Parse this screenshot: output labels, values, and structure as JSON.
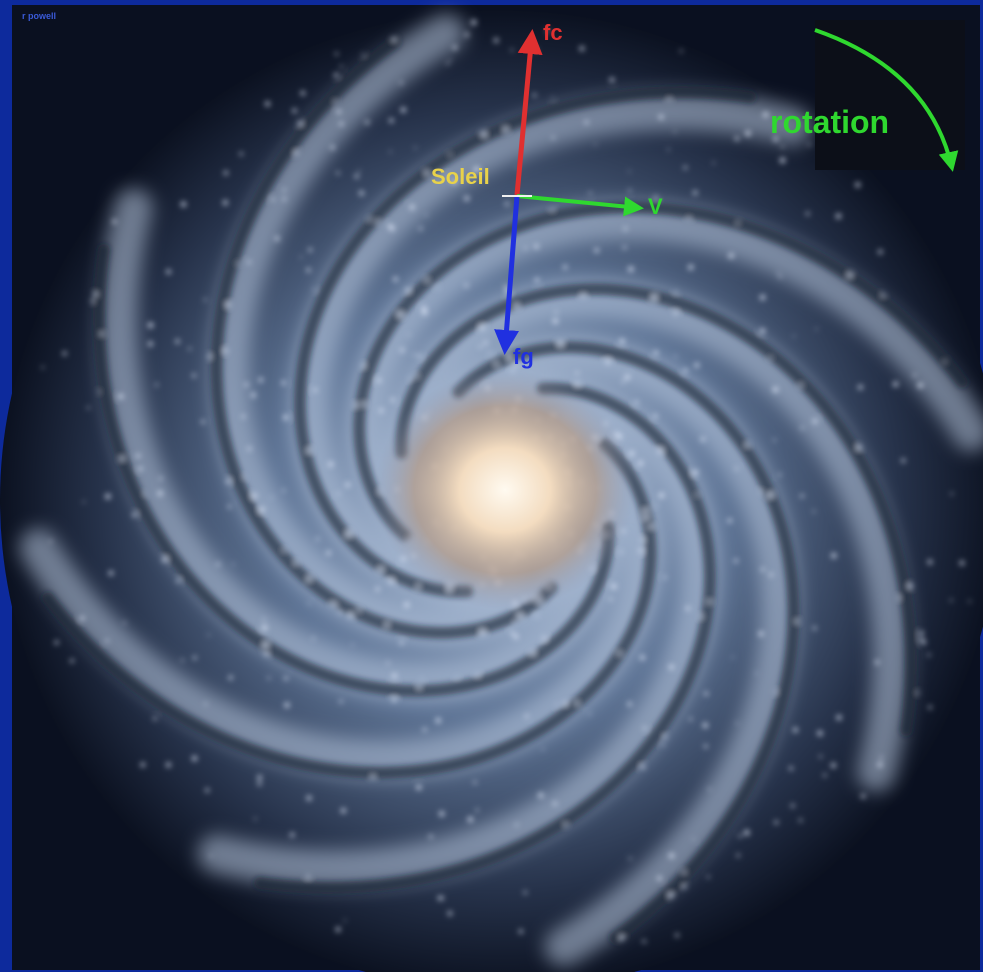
{
  "credit": "r powell",
  "labels": {
    "sun": "Soleil",
    "centrifugal": "fc",
    "velocity": "V",
    "gravity": "fg",
    "rotation": "rotation"
  }
}
